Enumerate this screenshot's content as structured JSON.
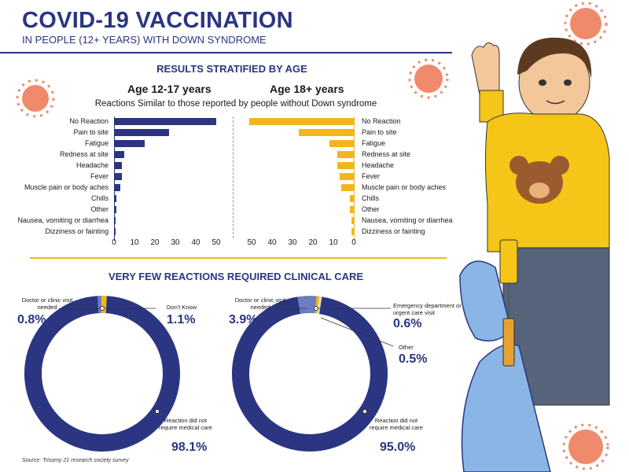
{
  "header": {
    "title": "COVID-19 VACCINATION",
    "subtitle": "IN PEOPLE (12+ YEARS) WITH DOWN SYNDROME"
  },
  "section1": {
    "title": "RESULTS STRATIFIED BY AGE",
    "description": "Reactions Similar to those reported by people without Down syndrome"
  },
  "section2": {
    "title": "VERY FEW REACTIONS REQUIRED CLINICAL CARE"
  },
  "source": "Source: Trisomy 21 research society survey",
  "colors": {
    "navy": "#2b3582",
    "yellow": "#f2b61c",
    "light_blue": "#6b7fc0",
    "virus": "#f08a6c"
  },
  "chart_data": [
    {
      "type": "bar",
      "orientation": "horizontal",
      "title": "Age 12-17 years",
      "categories": [
        "No Reaction",
        "Pain to site",
        "Fatigue",
        "Redness at site",
        "Headache",
        "Fever",
        "Muscle pain or body aches",
        "Chills",
        "Other",
        "Nausea, vomiting or diarrhea",
        "Dizziness or fainting"
      ],
      "values": [
        50,
        27,
        15,
        5,
        4,
        4,
        3,
        1,
        1,
        0.5,
        0.5
      ],
      "xlim": [
        0,
        55
      ],
      "xticks": [
        "0",
        "10",
        "20",
        "30",
        "40",
        "50"
      ],
      "color": "#2b3582"
    },
    {
      "type": "bar",
      "orientation": "horizontal",
      "direction": "right-to-left",
      "title": "Age 18+ years",
      "categories": [
        "No Reaction",
        "Pain to site",
        "Fatigue",
        "Redness at site",
        "Headache",
        "Fever",
        "Muscle pain or body aches",
        "Chills",
        "Other",
        "Nausea, vomiting or diarrhea",
        "Dizziness or fainting"
      ],
      "values": [
        51,
        27,
        12,
        8,
        8,
        7,
        6,
        2,
        2,
        1,
        1
      ],
      "xlim": [
        0,
        55
      ],
      "xticks": [
        "50",
        "40",
        "30",
        "20",
        "10",
        "0"
      ],
      "color": "#f2b61c"
    },
    {
      "type": "pie",
      "style": "donut",
      "segments": [
        {
          "label": "Reaction did not require medical care",
          "value": 98.1,
          "display": "98.1%",
          "color": "#2b3582"
        },
        {
          "label": "Doctor or clinic visit needed",
          "value": 0.8,
          "display": "0.8%",
          "color": "#6b7fc0"
        },
        {
          "label": "Don't Know",
          "value": 1.1,
          "display": "1.1%",
          "color": "#f2b61c"
        }
      ]
    },
    {
      "type": "pie",
      "style": "donut",
      "segments": [
        {
          "label": "Reaction did not require medical care",
          "value": 95.0,
          "display": "95.0%",
          "color": "#2b3582"
        },
        {
          "label": "Doctor or clinic visit needed",
          "value": 3.9,
          "display": "3.9%",
          "color": "#6b7fc0"
        },
        {
          "label": "Emergency department or urgent care visit",
          "value": 0.6,
          "display": "0.6%",
          "color": "#f2b61c"
        },
        {
          "label": "Other",
          "value": 0.5,
          "display": "0.5%",
          "color": "#e8e0c0"
        }
      ]
    }
  ]
}
